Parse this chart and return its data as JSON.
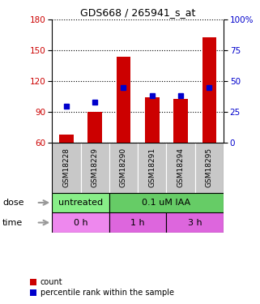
{
  "title": "GDS668 / 265941_s_at",
  "samples": [
    "GSM18228",
    "GSM18229",
    "GSM18290",
    "GSM18291",
    "GSM18294",
    "GSM18295"
  ],
  "red_counts": [
    68,
    90,
    144,
    104,
    103,
    163
  ],
  "blue_percentile": [
    30,
    33,
    45,
    38,
    38,
    45
  ],
  "ylim_left": [
    60,
    180
  ],
  "ylim_right": [
    0,
    100
  ],
  "yticks_left": [
    60,
    90,
    120,
    150,
    180
  ],
  "yticks_right": [
    0,
    25,
    50,
    75,
    100
  ],
  "yticklabels_right": [
    "0",
    "25",
    "50",
    "75",
    "100%"
  ],
  "red_color": "#cc0000",
  "blue_color": "#0000cc",
  "bar_bottom": 60,
  "dose_labels": [
    {
      "label": "untreated",
      "span": [
        0,
        2
      ],
      "color": "#88ee88"
    },
    {
      "label": "0.1 uM IAA",
      "span": [
        2,
        6
      ],
      "color": "#66cc66"
    }
  ],
  "time_labels": [
    {
      "label": "0 h",
      "span": [
        0,
        2
      ],
      "color": "#ee88ee"
    },
    {
      "label": "1 h",
      "span": [
        2,
        4
      ],
      "color": "#dd66dd"
    },
    {
      "label": "3 h",
      "span": [
        4,
        6
      ],
      "color": "#dd66dd"
    }
  ],
  "sample_bg_color": "#c8c8c8",
  "sample_border_color": "#ffffff",
  "grid_color": "black",
  "dose_row_label": "dose",
  "time_row_label": "time",
  "legend_red": "count",
  "legend_blue": "percentile rank within the sample",
  "fig_bg": "#ffffff",
  "arrow_color": "#999999"
}
